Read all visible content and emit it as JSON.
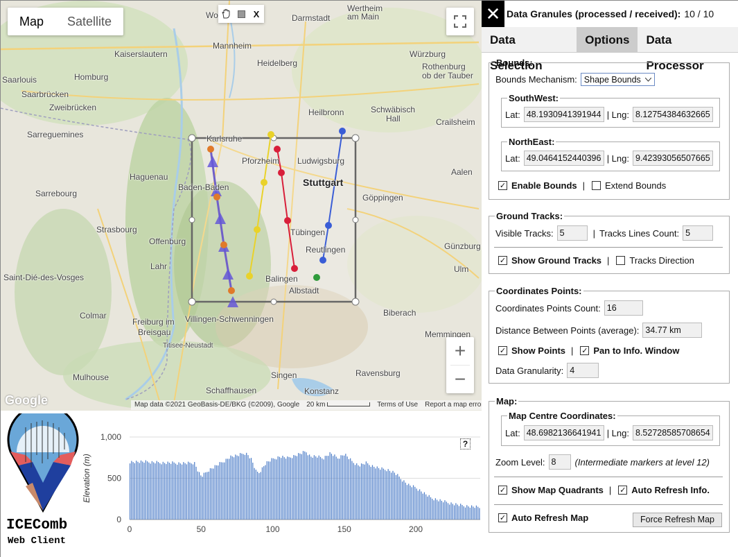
{
  "map": {
    "type_buttons": [
      "Map",
      "Satellite"
    ],
    "draw_close": "X",
    "places": [
      {
        "text": "Worms",
        "cls": ""
      },
      {
        "text": "Darmstadt",
        "cls": ""
      },
      {
        "text": "Wertheim",
        "cls": ""
      },
      {
        "text": "am Main",
        "cls": ""
      },
      {
        "text": "Mannheim",
        "cls": ""
      },
      {
        "text": "Kaiserslautern",
        "cls": ""
      },
      {
        "text": "Heidelberg",
        "cls": ""
      },
      {
        "text": "Würzburg",
        "cls": ""
      },
      {
        "text": "Homburg",
        "cls": ""
      },
      {
        "text": "Saarlouis",
        "cls": ""
      },
      {
        "text": "Saarbrücken",
        "cls": ""
      },
      {
        "text": "Zweibrücken",
        "cls": ""
      },
      {
        "text": "Rothenburg",
        "cls": ""
      },
      {
        "text": "ob der Tauber",
        "cls": ""
      },
      {
        "text": "Heilbronn",
        "cls": ""
      },
      {
        "text": "Schwäbisch",
        "cls": ""
      },
      {
        "text": "Hall",
        "cls": ""
      },
      {
        "text": "Sarreguemines",
        "cls": ""
      },
      {
        "text": "Karlsruhe",
        "cls": ""
      },
      {
        "text": "Crailsheim",
        "cls": ""
      },
      {
        "text": "Haguenau",
        "cls": ""
      },
      {
        "text": "Pforzheim",
        "cls": ""
      },
      {
        "text": "Ludwigsburg",
        "cls": ""
      },
      {
        "text": "Sarrebourg",
        "cls": ""
      },
      {
        "text": "Baden-Baden",
        "cls": ""
      },
      {
        "text": "Stuttgart",
        "cls": "big"
      },
      {
        "text": "Aalen",
        "cls": ""
      },
      {
        "text": "Göppingen",
        "cls": ""
      },
      {
        "text": "Strasbourg",
        "cls": ""
      },
      {
        "text": "Offenburg",
        "cls": ""
      },
      {
        "text": "Tübingen",
        "cls": ""
      },
      {
        "text": "Reutlingen",
        "cls": ""
      },
      {
        "text": "Günzburg",
        "cls": ""
      },
      {
        "text": "Lahr",
        "cls": ""
      },
      {
        "text": "Ulm",
        "cls": ""
      },
      {
        "text": "Saint-Dié-des-Vosges",
        "cls": ""
      },
      {
        "text": "Balingen",
        "cls": ""
      },
      {
        "text": "Albstadt",
        "cls": ""
      },
      {
        "text": "Biberach",
        "cls": ""
      },
      {
        "text": "Colmar",
        "cls": ""
      },
      {
        "text": "Freiburg im",
        "cls": ""
      },
      {
        "text": "Breisgau",
        "cls": ""
      },
      {
        "text": "Villingen-Schwenningen",
        "cls": ""
      },
      {
        "text": "Titisee-Neustadt",
        "cls": ""
      },
      {
        "text": "Memmingen",
        "cls": ""
      },
      {
        "text": "Mulhouse",
        "cls": ""
      },
      {
        "text": "Singen",
        "cls": ""
      },
      {
        "text": "Ravensburg",
        "cls": ""
      },
      {
        "text": "Schaffhausen",
        "cls": ""
      },
      {
        "text": "Konstanz",
        "cls": ""
      }
    ],
    "google": "Google",
    "footer": [
      "Map data ©2021 GeoBasis-DE/BKG (©2009), Google",
      "20 km",
      "Terms of Use",
      "Report a map error"
    ]
  },
  "logo": {
    "title": "ICEComb",
    "subtitle": "Web Client"
  },
  "chart_data": {
    "type": "bar",
    "ylabel": "Elevation (m)",
    "xlabel": "",
    "yticks": [
      "1,000",
      "500",
      "0"
    ],
    "xticks": [
      "0",
      "50",
      "100",
      "150",
      "200"
    ],
    "ylim": [
      0,
      1000
    ],
    "xlim": [
      0,
      245
    ],
    "color": "#4a7bc7",
    "profile": [
      [
        0,
        700
      ],
      [
        10,
        695
      ],
      [
        20,
        690
      ],
      [
        30,
        685
      ],
      [
        40,
        680
      ],
      [
        45,
        690
      ],
      [
        48,
        570
      ],
      [
        50,
        520
      ],
      [
        55,
        600
      ],
      [
        60,
        650
      ],
      [
        65,
        700
      ],
      [
        70,
        760
      ],
      [
        75,
        770
      ],
      [
        80,
        800
      ],
      [
        82,
        790
      ],
      [
        85,
        720
      ],
      [
        88,
        580
      ],
      [
        90,
        560
      ],
      [
        95,
        680
      ],
      [
        100,
        730
      ],
      [
        105,
        760
      ],
      [
        110,
        740
      ],
      [
        115,
        770
      ],
      [
        120,
        800
      ],
      [
        123,
        820
      ],
      [
        126,
        760
      ],
      [
        130,
        760
      ],
      [
        135,
        740
      ],
      [
        140,
        800
      ],
      [
        145,
        740
      ],
      [
        150,
        790
      ],
      [
        155,
        700
      ],
      [
        160,
        650
      ],
      [
        165,
        680
      ],
      [
        170,
        640
      ],
      [
        175,
        610
      ],
      [
        180,
        600
      ],
      [
        185,
        560
      ],
      [
        190,
        480
      ],
      [
        195,
        410
      ],
      [
        200,
        380
      ],
      [
        205,
        320
      ],
      [
        210,
        260
      ],
      [
        220,
        210
      ],
      [
        230,
        170
      ],
      [
        240,
        150
      ],
      [
        245,
        140
      ]
    ]
  },
  "panel": {
    "title": "Data Granules (processed / received):",
    "granules": "10 / 10",
    "tabs": [
      "Data Selection",
      "Options",
      "Data Processor"
    ],
    "bounds": {
      "legend": "Bounds:",
      "mechanism_label": "Bounds Mechanism:",
      "mechanism_value": "Shape Bounds",
      "sw_legend": "SouthWest:",
      "sw_lat": "48.1930941391944",
      "sw_lng": "8.12754384632665",
      "ne_legend": "NorthEast:",
      "ne_lat": "49.0464152440396",
      "ne_lng": "9.42393056507665",
      "lat_label": "Lat:",
      "lng_label": "| Lng:",
      "enable": "Enable Bounds",
      "extend": "Extend Bounds"
    },
    "tracks": {
      "legend": "Ground Tracks:",
      "visible_label": "Visible Tracks:",
      "visible_value": "5",
      "lines_label": "Tracks Lines Count:",
      "lines_value": "5",
      "show": "Show Ground Tracks",
      "direction": "Tracks Direction"
    },
    "coords": {
      "legend": "Coordinates Points:",
      "count_label": "Coordinates Points Count:",
      "count_value": "16",
      "dist_label": "Distance Between Points (average):",
      "dist_value": "34.77 km",
      "show_points": "Show Points",
      "pan": "Pan to Info. Window",
      "granularity_label": "Data Granularity:",
      "granularity_value": "4"
    },
    "mapsec": {
      "legend": "Map:",
      "centre_legend": "Map Centre Coordinates:",
      "lat": "48.6982136641941",
      "lng": "8.52728585708654",
      "zoom_label": "Zoom Level:",
      "zoom_value": "8",
      "zoom_note": "(Intermediate markers at level 12)",
      "quadrants": "Show Map Quadrants",
      "auto_info": "Auto Refresh Info.",
      "auto_map": "Auto Refresh Map",
      "force": "Force Refresh Map"
    },
    "sep": "|"
  }
}
